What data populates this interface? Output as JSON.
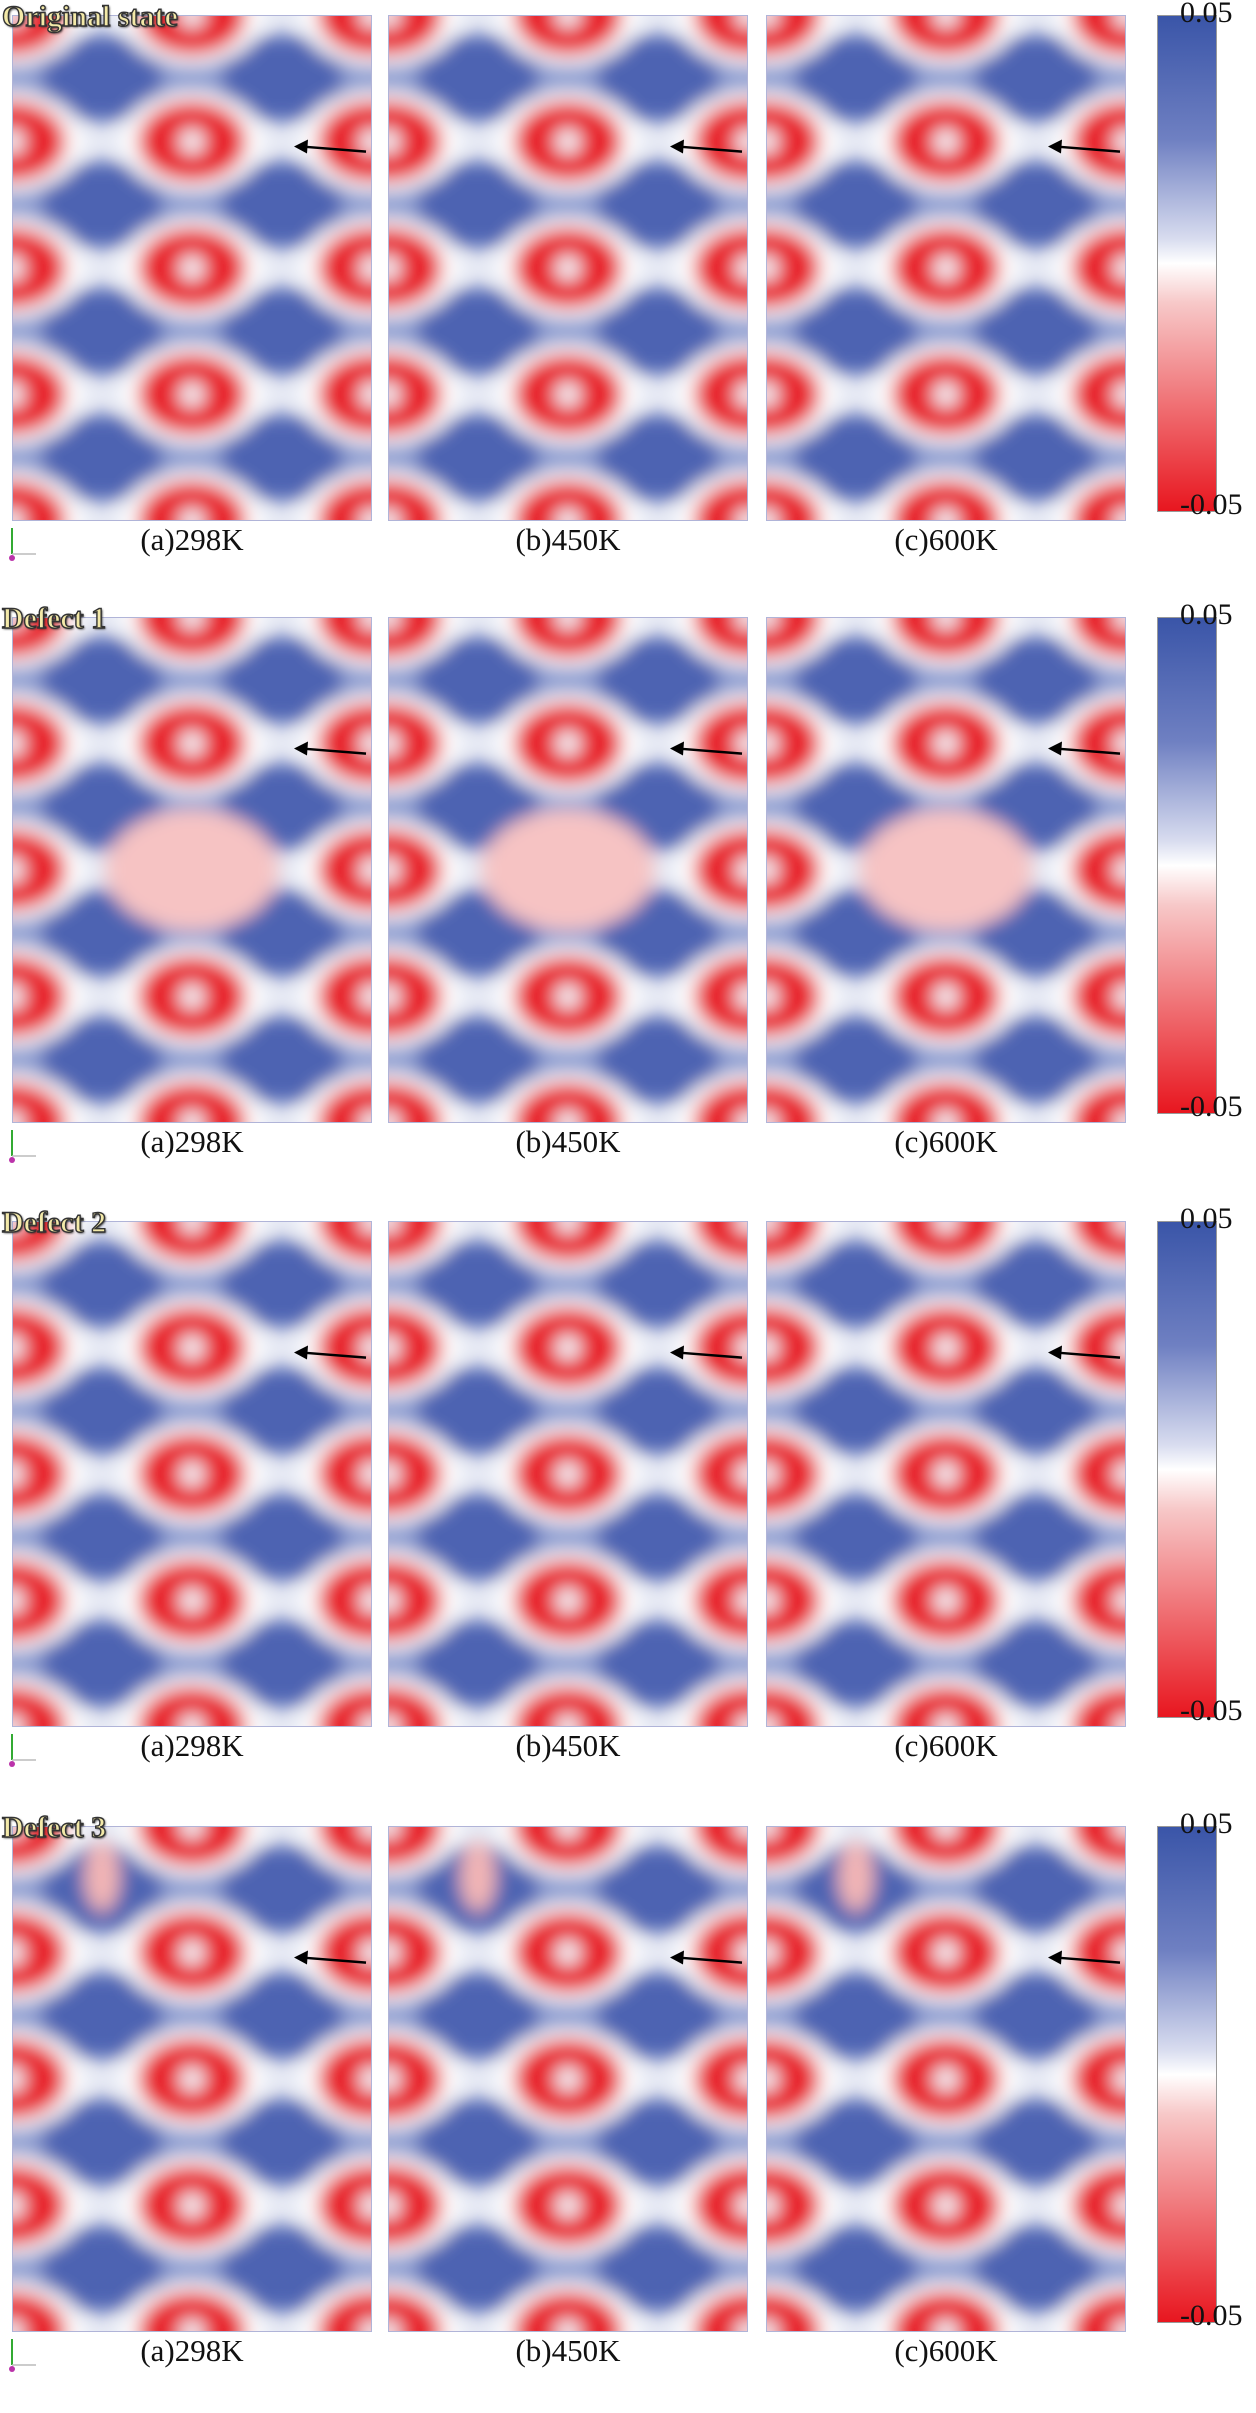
{
  "rows": [
    {
      "title": "Original state",
      "captions": [
        "(a)298K",
        "(b)450K",
        "(c)600K"
      ],
      "colorbar": {
        "max": "0.05",
        "min": "-0.05"
      }
    },
    {
      "title": "Defect 1",
      "captions": [
        "(a)298K",
        "(b)450K",
        "(c)600K"
      ],
      "colorbar": {
        "max": "0.05",
        "min": "-0.05"
      }
    },
    {
      "title": "Defect 2",
      "captions": [
        "(a)298K",
        "(b)450K",
        "(c)600K"
      ],
      "colorbar": {
        "max": "0.05",
        "min": "-0.05"
      }
    },
    {
      "title": "Defect 3",
      "captions": [
        "(a)298K",
        "(b)450K",
        "(c)600K"
      ],
      "colorbar": {
        "max": "0.05",
        "min": "-0.05"
      }
    }
  ]
}
